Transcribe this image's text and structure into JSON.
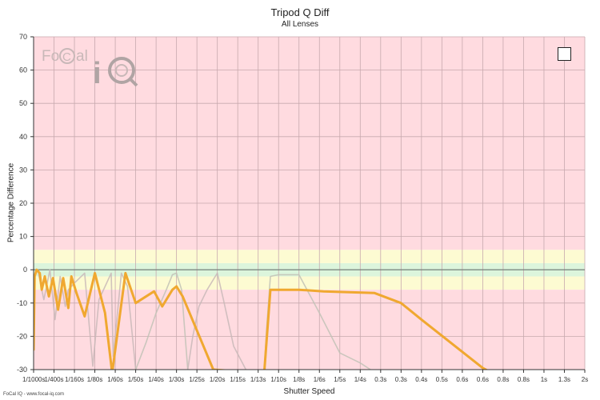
{
  "chart_data": {
    "type": "line",
    "title": "Tripod Q Diff",
    "subtitle": "All Lenses",
    "xlabel": "Shutter Speed",
    "ylabel": "Percentage Difference",
    "ylim": [
      -30,
      70
    ],
    "yticks": [
      70,
      60,
      50,
      40,
      30,
      20,
      10,
      0,
      -10,
      -20,
      -30
    ],
    "x_categories": [
      "1/1000s",
      "1/400s",
      "1/160s",
      "1/80s",
      "1/60s",
      "1/50s",
      "1/40s",
      "1/30s",
      "1/25s",
      "1/20s",
      "1/15s",
      "1/13s",
      "1/10s",
      "1/8s",
      "1/6s",
      "1/5s",
      "1/4s",
      "0.3s",
      "0.3s",
      "0.4s",
      "0.5s",
      "0.6s",
      "0.6s",
      "0.8s",
      "0.8s",
      "1s",
      "1.3s",
      "2s"
    ],
    "bands": [
      {
        "from": -2,
        "to": 2,
        "color": "#dcf5dc"
      },
      {
        "from": -6,
        "to": -2,
        "color": "#fdfbd2"
      },
      {
        "from": 2,
        "to": 6,
        "color": "#fdfbd2"
      },
      {
        "from": 6,
        "to": 70,
        "color": "#ffdbe0"
      },
      {
        "from": -30,
        "to": -6,
        "color": "#ffdbe0"
      }
    ],
    "grid": true,
    "series": [
      {
        "color": "#c9b8b8",
        "points": [
          [
            0.0,
            -2
          ],
          [
            0.2,
            0
          ],
          [
            0.5,
            -9
          ],
          [
            0.8,
            0
          ],
          [
            1.05,
            -15
          ],
          [
            1.3,
            -2
          ],
          [
            1.55,
            -11
          ],
          [
            1.7,
            -6
          ],
          [
            2.0,
            -4
          ],
          [
            2.5,
            -1
          ],
          [
            2.9,
            -29
          ],
          [
            3.2,
            -9
          ],
          [
            3.8,
            -1
          ],
          [
            3.9,
            -26
          ],
          [
            4.3,
            -1
          ],
          [
            4.6,
            -5
          ],
          [
            5.0,
            -30
          ]
        ]
      },
      {
        "color": "#c2c2b6",
        "points": [
          [
            5.0,
            -30
          ],
          [
            5.5,
            -22
          ],
          [
            6.0,
            -13
          ],
          [
            6.5,
            -6
          ],
          [
            6.8,
            -1.5
          ],
          [
            7.0,
            -1
          ],
          [
            7.25,
            -6
          ],
          [
            7.55,
            -30
          ]
        ]
      },
      {
        "color": "#c9b8b8",
        "points": [
          [
            7.55,
            -30
          ],
          [
            7.8,
            -20
          ],
          [
            8.1,
            -11
          ],
          [
            8.5,
            -6
          ],
          [
            8.9,
            -2
          ],
          [
            9.0,
            -1
          ],
          [
            9.3,
            -9
          ],
          [
            9.8,
            -23
          ],
          [
            10.4,
            -30
          ]
        ]
      },
      {
        "color": "#c2c2b6",
        "points": [
          [
            11.3,
            -30
          ],
          [
            11.4,
            -19
          ],
          [
            11.6,
            -2
          ],
          [
            12.0,
            -1.5
          ],
          [
            13.0,
            -1.5
          ],
          [
            14.0,
            -13
          ],
          [
            15.0,
            -25
          ],
          [
            16.0,
            -28
          ],
          [
            16.5,
            -30
          ]
        ]
      },
      {
        "color": "#f0a830",
        "points": [
          [
            0.0,
            -24
          ],
          [
            0.05,
            -2
          ],
          [
            0.15,
            0
          ],
          [
            0.3,
            -1
          ],
          [
            0.4,
            -6
          ],
          [
            0.55,
            -2
          ],
          [
            0.75,
            -8
          ],
          [
            0.95,
            -2.5
          ],
          [
            1.2,
            -12
          ],
          [
            1.45,
            -2.5
          ],
          [
            1.7,
            -11.5
          ],
          [
            1.85,
            -2
          ],
          [
            2.1,
            -7
          ],
          [
            2.5,
            -14
          ],
          [
            3.0,
            -1
          ],
          [
            3.5,
            -13
          ],
          [
            3.85,
            -31
          ],
          [
            4.5,
            -1
          ],
          [
            5.0,
            -10
          ],
          [
            5.9,
            -6.5
          ],
          [
            6.3,
            -11
          ],
          [
            6.8,
            -6
          ],
          [
            7.0,
            -5
          ],
          [
            7.3,
            -8
          ],
          [
            8.8,
            -30
          ],
          [
            10.0,
            -30.5
          ],
          [
            11.3,
            -30.5
          ],
          [
            11.6,
            -6
          ],
          [
            13.0,
            -6
          ],
          [
            14.2,
            -6.5
          ],
          [
            16.7,
            -7
          ],
          [
            18.0,
            -10
          ],
          [
            19.0,
            -15
          ],
          [
            22.0,
            -29.5
          ],
          [
            22.3,
            -30.5
          ]
        ]
      }
    ]
  },
  "logo_text": "FoCal iQ",
  "footer": "FoCal IQ - www.focal-iq.com"
}
